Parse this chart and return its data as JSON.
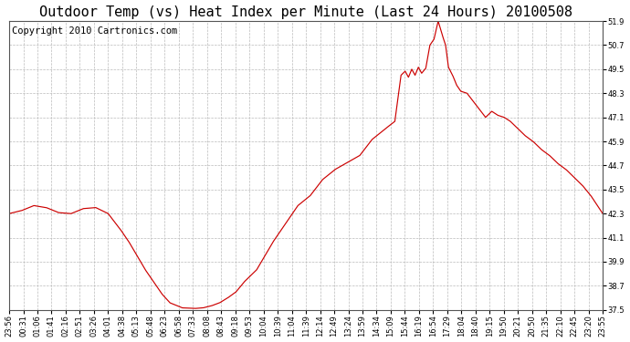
{
  "title": "Outdoor Temp (vs) Heat Index per Minute (Last 24 Hours) 20100508",
  "copyright": "Copyright 2010 Cartronics.com",
  "line_color": "#cc0000",
  "bg_color": "#ffffff",
  "plot_bg_color": "#ffffff",
  "grid_color": "#bbbbbb",
  "ylim": [
    37.5,
    51.9
  ],
  "yticks": [
    37.5,
    38.7,
    39.9,
    41.1,
    42.3,
    43.5,
    44.7,
    45.9,
    47.1,
    48.3,
    49.5,
    50.7,
    51.9
  ],
  "xtick_labels": [
    "23:56",
    "00:31",
    "01:06",
    "01:41",
    "02:16",
    "02:51",
    "03:26",
    "04:01",
    "04:38",
    "05:13",
    "05:48",
    "06:23",
    "06:58",
    "07:33",
    "08:08",
    "08:43",
    "09:18",
    "09:53",
    "10:04",
    "10:39",
    "11:04",
    "11:39",
    "12:14",
    "12:49",
    "13:24",
    "13:59",
    "14:34",
    "15:09",
    "15:44",
    "16:19",
    "16:54",
    "17:29",
    "18:04",
    "18:40",
    "19:15",
    "19:50",
    "20:21",
    "20:50",
    "21:35",
    "22:10",
    "22:45",
    "23:20",
    "23:55"
  ],
  "x_ctrl": [
    0,
    30,
    60,
    90,
    120,
    150,
    180,
    210,
    240,
    270,
    290,
    310,
    330,
    350,
    370,
    390,
    420,
    450,
    470,
    490,
    510,
    530,
    550,
    570,
    600,
    620,
    640,
    660,
    680,
    700,
    730,
    760,
    790,
    820,
    850,
    880,
    910,
    935,
    950,
    960,
    968,
    976,
    984,
    992,
    1000,
    1010,
    1020,
    1030,
    1040,
    1050,
    1058,
    1065,
    1075,
    1085,
    1095,
    1110,
    1125,
    1140,
    1155,
    1170,
    1185,
    1200,
    1215,
    1230,
    1250,
    1270,
    1290,
    1310,
    1330,
    1350,
    1370,
    1390,
    1410,
    1439
  ],
  "y_ctrl": [
    42.3,
    42.45,
    42.7,
    42.6,
    42.35,
    42.3,
    42.55,
    42.6,
    42.3,
    41.5,
    40.9,
    40.2,
    39.5,
    38.9,
    38.3,
    37.85,
    37.6,
    37.57,
    37.6,
    37.7,
    37.85,
    38.1,
    38.4,
    38.9,
    39.5,
    40.2,
    40.9,
    41.5,
    42.1,
    42.7,
    43.2,
    44.0,
    44.5,
    44.85,
    45.2,
    46.0,
    46.5,
    46.9,
    49.2,
    49.4,
    49.1,
    49.5,
    49.2,
    49.6,
    49.3,
    49.55,
    50.7,
    51.0,
    51.9,
    51.2,
    50.7,
    49.6,
    49.2,
    48.7,
    48.4,
    48.3,
    47.9,
    47.5,
    47.1,
    47.4,
    47.2,
    47.1,
    46.9,
    46.6,
    46.2,
    45.9,
    45.5,
    45.2,
    44.8,
    44.5,
    44.1,
    43.7,
    43.2,
    42.3
  ],
  "title_fontsize": 11,
  "copyright_fontsize": 7.5,
  "tick_fontsize": 6
}
